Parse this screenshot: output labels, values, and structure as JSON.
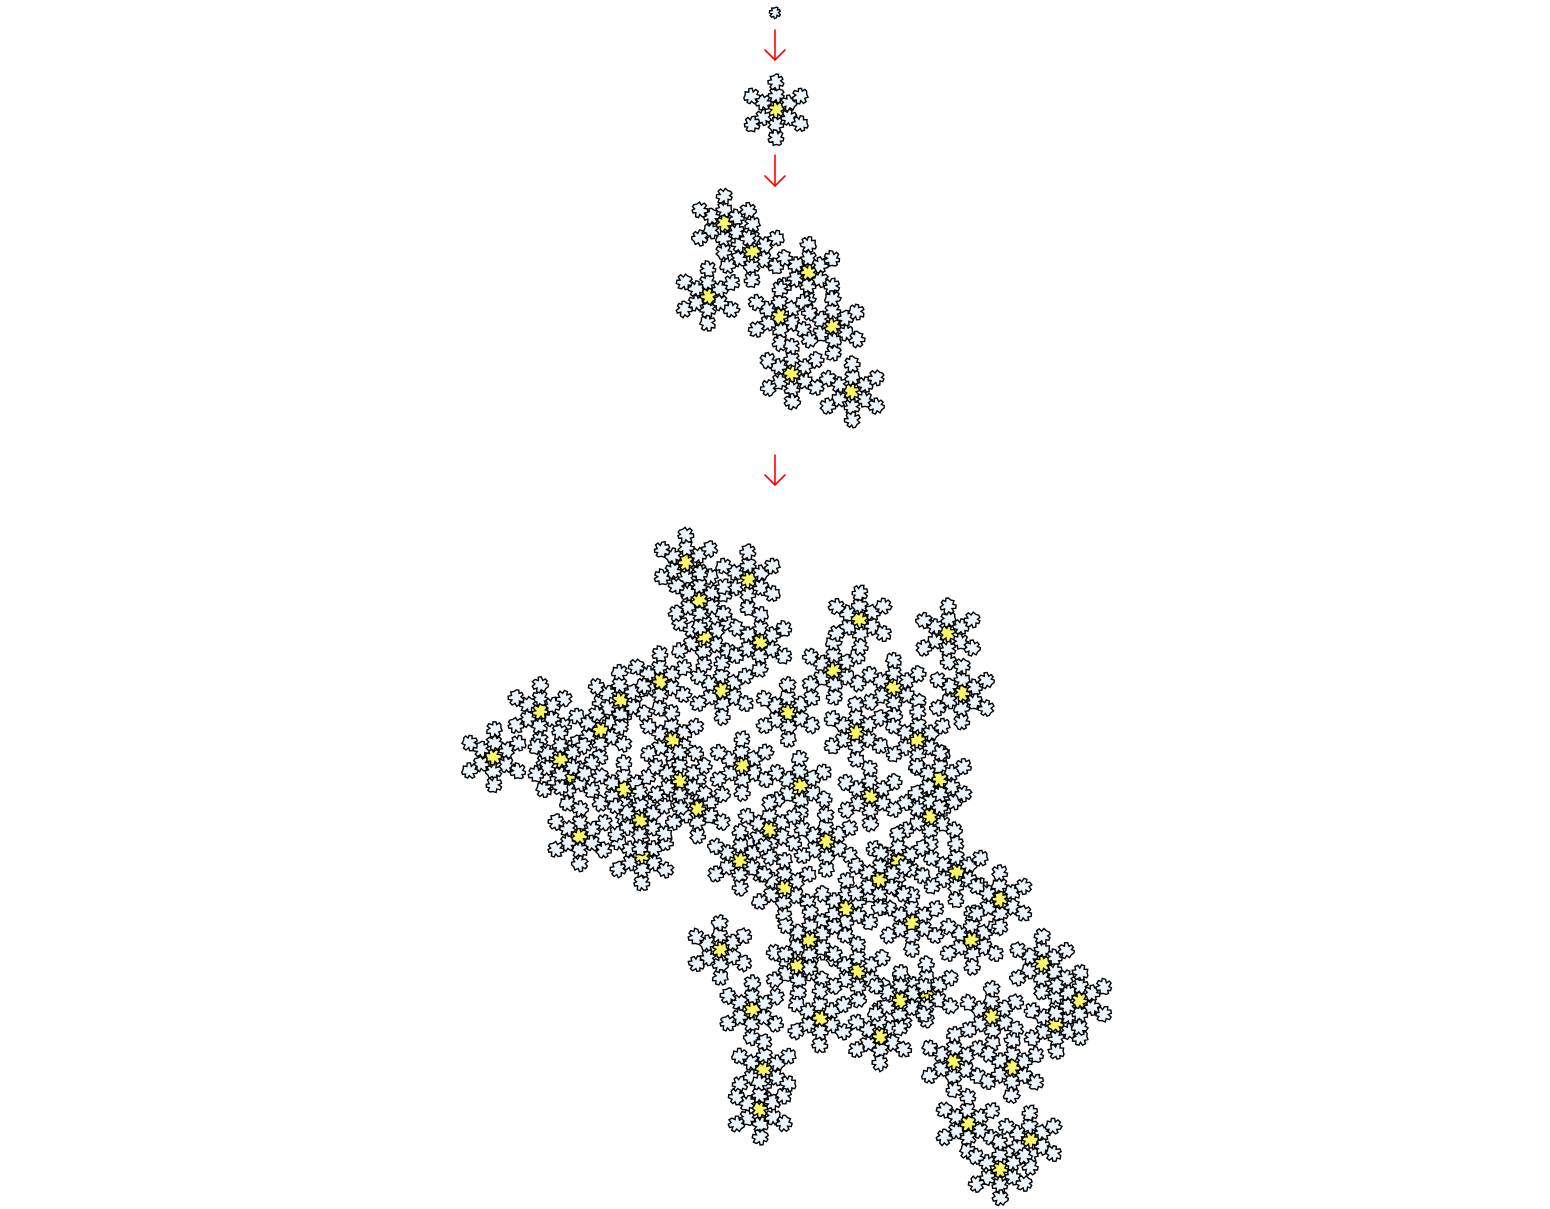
{
  "colors": {
    "background": "#ffffff",
    "tile_fill": "#eaf5fd",
    "highlight_fill": "#fbf76a",
    "outline": "#000000",
    "arrow": "#ff0000"
  },
  "stages": [
    {
      "level": 0,
      "clusters": 1,
      "highlighted_tiles": 0
    },
    {
      "level": 1,
      "clusters": 1,
      "highlighted_tiles": 1
    },
    {
      "level": 2,
      "clusters": 1,
      "highlighted_tiles": 8
    },
    {
      "level": 3,
      "clusters": 1,
      "highlighted_tiles": 64
    }
  ],
  "arrows": [
    {
      "from_level": 0,
      "to_level": 1,
      "icon": "arrow-down-icon"
    },
    {
      "from_level": 1,
      "to_level": 2,
      "icon": "arrow-down-icon"
    },
    {
      "from_level": 2,
      "to_level": 3,
      "icon": "arrow-down-icon"
    }
  ]
}
